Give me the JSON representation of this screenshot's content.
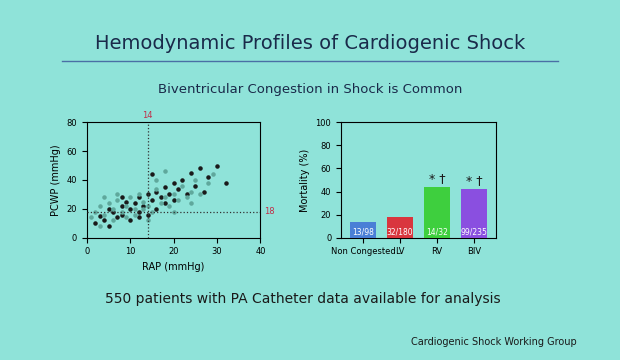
{
  "title": "Hemodynamic Profiles of Cardiogenic Shock",
  "subtitle": "Biventricular Congestion in Shock is Common",
  "footnote": "550 patients with PA Catheter data available for analysis",
  "source": "Cardiogenic Shock Working Group",
  "chart_data": [
    {
      "type": "scatter",
      "x_label": "RAP (mmHg)",
      "y_label": "PCWP (mmHg)",
      "xlim": [
        0,
        40
      ],
      "xticks": [
        0,
        10,
        20,
        30,
        40
      ],
      "ylim": [
        0,
        80
      ],
      "yticks": [
        0,
        20,
        40,
        60,
        80
      ],
      "reference_lines": {
        "x": [
          14
        ],
        "y": [
          18
        ]
      },
      "series": [
        {
          "color": "#1a1a1a",
          "marker": "circle",
          "x": [
            2,
            3,
            4,
            5,
            5,
            6,
            7,
            8,
            8,
            9,
            10,
            10,
            11,
            12,
            12,
            13,
            14,
            14,
            15,
            16,
            16,
            17,
            18,
            18,
            19,
            20,
            20,
            21,
            22,
            23,
            24,
            25,
            26,
            27,
            28,
            30,
            32,
            8,
            12,
            15
          ],
          "values": [
            10,
            15,
            12,
            20,
            8,
            18,
            14,
            22,
            16,
            25,
            20,
            12,
            24,
            28,
            18,
            22,
            30,
            16,
            26,
            20,
            32,
            28,
            35,
            24,
            30,
            38,
            26,
            34,
            40,
            30,
            45,
            36,
            48,
            32,
            42,
            50,
            38,
            28,
            14,
            44
          ]
        },
        {
          "color": "#5fa89c",
          "marker": "circle",
          "x": [
            1,
            2,
            3,
            4,
            5,
            6,
            6,
            7,
            8,
            9,
            10,
            11,
            12,
            13,
            13,
            14,
            15,
            16,
            17,
            18,
            19,
            20,
            21,
            22,
            23,
            24,
            25,
            26,
            28,
            29,
            4,
            9,
            11,
            16,
            20,
            3,
            7,
            14,
            18,
            24
          ],
          "values": [
            14,
            18,
            22,
            16,
            24,
            12,
            20,
            26,
            18,
            22,
            28,
            16,
            30,
            20,
            25,
            22,
            18,
            34,
            24,
            28,
            22,
            30,
            26,
            36,
            28,
            32,
            40,
            30,
            38,
            44,
            28,
            14,
            20,
            40,
            18,
            8,
            30,
            12,
            46,
            24
          ]
        }
      ]
    },
    {
      "type": "bar",
      "y_label": "Mortality (%)",
      "categories": [
        "Non Congested",
        "LV",
        "RV",
        "BIV"
      ],
      "values": [
        13.3,
        17.8,
        43.8,
        42.1
      ],
      "value_labels": [
        "13/98",
        "32/180",
        "14/32",
        "99/235"
      ],
      "data_labels": true,
      "colors": [
        "#4a7fd6",
        "#d9363e",
        "#3ecf3e",
        "#8a4fe0"
      ],
      "ylim": [
        0,
        100
      ],
      "yticks": [
        0,
        20,
        40,
        60,
        80,
        100
      ],
      "annotations": [
        {
          "category": "RV",
          "text": "* †"
        },
        {
          "category": "BIV",
          "text": "* †"
        }
      ]
    }
  ]
}
